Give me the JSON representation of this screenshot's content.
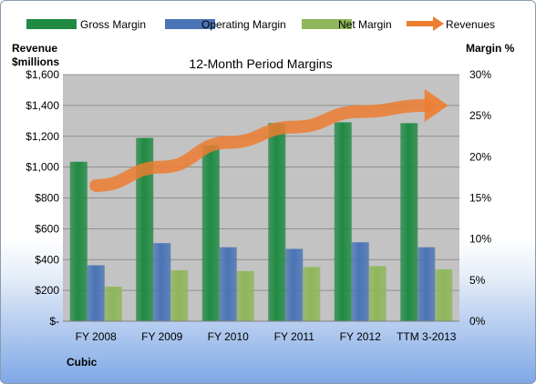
{
  "chart_data": {
    "type": "bar",
    "title": "12-Month Period Margins",
    "company": "Cubic",
    "y_left_label": [
      "Revenue",
      "$millions"
    ],
    "y_right_label": "Margin %",
    "categories": [
      "FY 2008",
      "FY 2009",
      "FY 2010",
      "FY 2011",
      "FY 2012",
      "TTM 3-2013"
    ],
    "y_left_ticks": [
      "$-",
      "$200",
      "$400",
      "$600",
      "$800",
      "$1,000",
      "$1,200",
      "$1,400",
      "$1,600"
    ],
    "y_right_ticks": [
      "0%",
      "5%",
      "10%",
      "15%",
      "20%",
      "25%",
      "30%"
    ],
    "ylim_left": [
      0,
      1600
    ],
    "ylim_right": [
      0,
      30
    ],
    "series": [
      {
        "name": "Gross Margin",
        "axis": "right",
        "kind": "bar",
        "color": "#1f8a43",
        "values": [
          19.4,
          22.3,
          21.4,
          24.1,
          24.2,
          24.1
        ]
      },
      {
        "name": "Operating Margin",
        "axis": "right",
        "kind": "bar",
        "color": "#4a74b5",
        "values": [
          6.8,
          9.5,
          9.0,
          8.8,
          9.6,
          9.0
        ]
      },
      {
        "name": "Net Margin",
        "axis": "right",
        "kind": "bar",
        "color": "#8fb65a",
        "values": [
          4.2,
          6.2,
          6.1,
          6.6,
          6.7,
          6.3
        ]
      },
      {
        "name": "Revenues",
        "axis": "left",
        "kind": "arrow",
        "color": "#ed7d31",
        "values": [
          880,
          1000,
          1160,
          1260,
          1360,
          1400
        ]
      }
    ],
    "grid": true,
    "legend_position": "top"
  }
}
